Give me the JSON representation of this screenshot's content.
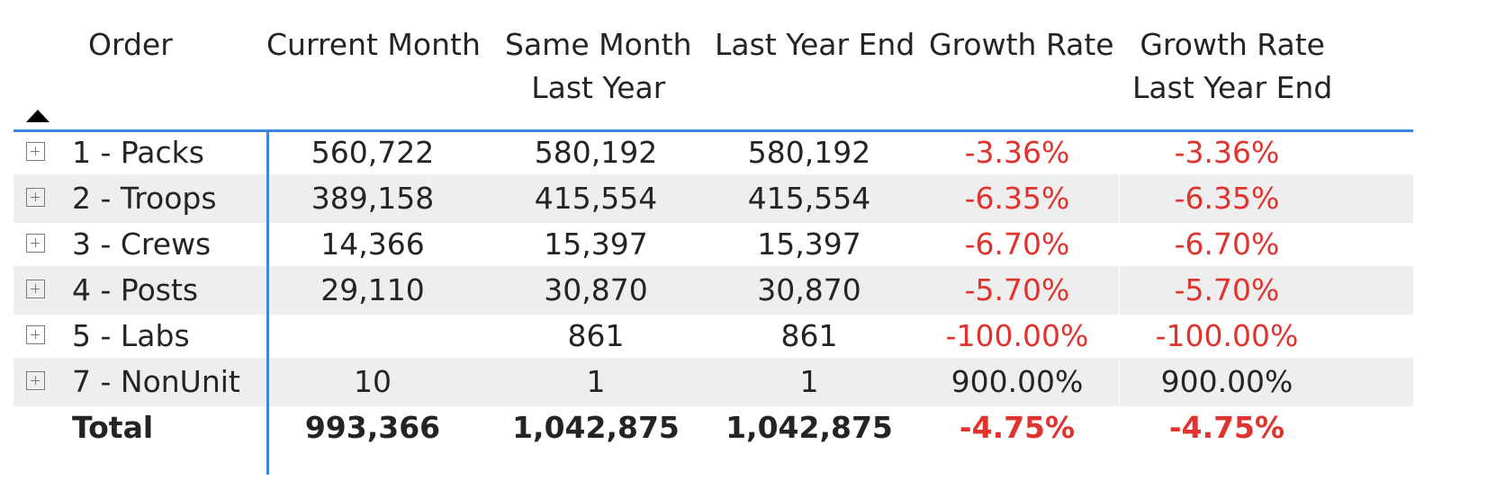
{
  "table": {
    "headers": {
      "order": "Order",
      "current_month": "Current Month",
      "same_month_last_year_line1": "Same Month",
      "same_month_last_year_line2": "Last Year",
      "last_year_end": "Last Year End",
      "growth_rate": "Growth Rate",
      "growth_rate_lye_line1": "Growth Rate",
      "growth_rate_lye_line2": "Last Year End"
    },
    "sort": "ascending",
    "rows": [
      {
        "order": "1 - Packs",
        "current_month": "560,722",
        "same_month_last_year": "580,192",
        "last_year_end": "580,192",
        "growth_rate": "-3.36%",
        "growth_rate_lye": "-3.36%"
      },
      {
        "order": "2 - Troops",
        "current_month": "389,158",
        "same_month_last_year": "415,554",
        "last_year_end": "415,554",
        "growth_rate": "-6.35%",
        "growth_rate_lye": "-6.35%"
      },
      {
        "order": "3 - Crews",
        "current_month": "14,366",
        "same_month_last_year": "15,397",
        "last_year_end": "15,397",
        "growth_rate": "-6.70%",
        "growth_rate_lye": "-6.70%"
      },
      {
        "order": "4 - Posts",
        "current_month": "29,110",
        "same_month_last_year": "30,870",
        "last_year_end": "30,870",
        "growth_rate": "-5.70%",
        "growth_rate_lye": "-5.70%"
      },
      {
        "order": "5 - Labs",
        "current_month": "",
        "same_month_last_year": "861",
        "last_year_end": "861",
        "growth_rate": "-100.00%",
        "growth_rate_lye": "-100.00%"
      },
      {
        "order": "7 - NonUnit",
        "current_month": "10",
        "same_month_last_year": "1",
        "last_year_end": "1",
        "growth_rate": "900.00%",
        "growth_rate_lye": "900.00%"
      }
    ],
    "total": {
      "order": "Total",
      "current_month": "993,366",
      "same_month_last_year": "1,042,875",
      "last_year_end": "1,042,875",
      "growth_rate": "-4.75%",
      "growth_rate_lye": "-4.75%"
    },
    "colors": {
      "negative": "#e0332e",
      "accent_border": "#3a86e0",
      "band": "#eeeeee",
      "text": "#252423"
    }
  }
}
